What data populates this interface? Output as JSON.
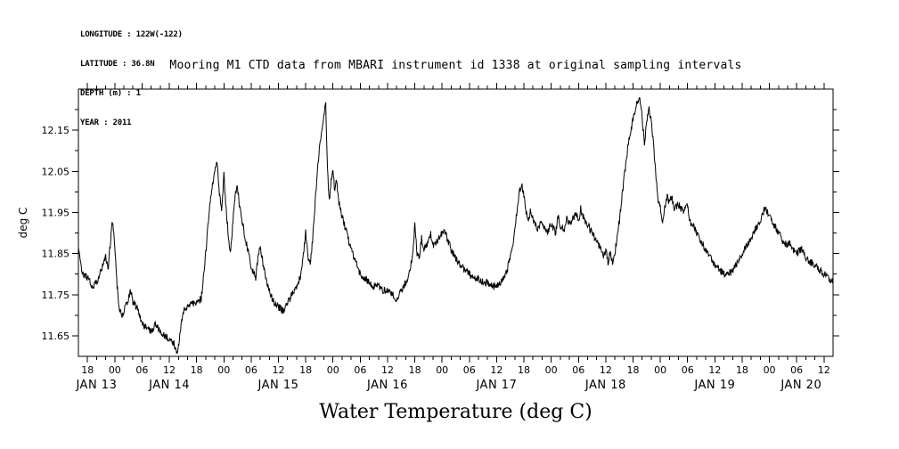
{
  "metadata": {
    "longitude": "LONGITUDE : 122W(-122)",
    "latitude": "LATITUDE : 36.8N",
    "depth": "DEPTH (m) : 1",
    "year": "YEAR : 2011"
  },
  "title": "Mooring M1 CTD data from MBARI instrument id 1338 at original sampling intervals",
  "caption": "Water Temperature (deg C)",
  "chart_data": {
    "type": "line",
    "title": "Mooring M1 CTD data from MBARI instrument id 1338 at original sampling intervals",
    "ylabel": "deg C",
    "xlabel": "Water Temperature (deg C)",
    "line_color": "#000000",
    "background": "#ffffff",
    "grid": false,
    "legend": "none",
    "ylim": [
      11.6,
      12.25
    ],
    "yticks": [
      11.65,
      11.75,
      11.85,
      11.95,
      12.05,
      12.15
    ],
    "xlim_hours": [
      16,
      182
    ],
    "x_axis_epoch": "hours since JAN 13 2011 00:00",
    "x_major_tick_hours": 6,
    "x_minor_tick_hours": 2,
    "x_hour_label_cycle": [
      "18",
      "00",
      "06",
      "12"
    ],
    "day_labels": [
      "JAN 13",
      "JAN 14",
      "JAN 15",
      "JAN 16",
      "JAN 17",
      "JAN 18",
      "JAN 19",
      "JAN 20"
    ],
    "noise_amplitude": 0.009,
    "series": [
      {
        "name": "water temperature",
        "units": "deg C",
        "points": [
          [
            16,
            11.87
          ],
          [
            16.5,
            11.82
          ],
          [
            17,
            11.8
          ],
          [
            18,
            11.79
          ],
          [
            19,
            11.77
          ],
          [
            20,
            11.78
          ],
          [
            21,
            11.81
          ],
          [
            22,
            11.84
          ],
          [
            22.5,
            11.81
          ],
          [
            23,
            11.87
          ],
          [
            23.5,
            11.93
          ],
          [
            24,
            11.87
          ],
          [
            24.5,
            11.77
          ],
          [
            25,
            11.72
          ],
          [
            25.5,
            11.7
          ],
          [
            26,
            11.71
          ],
          [
            27,
            11.74
          ],
          [
            27.5,
            11.76
          ],
          [
            28,
            11.73
          ],
          [
            29,
            11.72
          ],
          [
            30,
            11.68
          ],
          [
            31,
            11.67
          ],
          [
            32,
            11.66
          ],
          [
            33,
            11.68
          ],
          [
            34,
            11.66
          ],
          [
            35,
            11.65
          ],
          [
            36,
            11.64
          ],
          [
            37,
            11.63
          ],
          [
            37.5,
            11.61
          ],
          [
            38,
            11.62
          ],
          [
            38.5,
            11.67
          ],
          [
            39,
            11.71
          ],
          [
            40,
            11.72
          ],
          [
            41,
            11.73
          ],
          [
            42,
            11.73
          ],
          [
            43,
            11.74
          ],
          [
            43.5,
            11.79
          ],
          [
            44,
            11.85
          ],
          [
            44.5,
            11.92
          ],
          [
            45,
            11.98
          ],
          [
            45.5,
            12.02
          ],
          [
            46,
            12.05
          ],
          [
            46.5,
            12.07
          ],
          [
            47,
            12.0
          ],
          [
            47.5,
            11.96
          ],
          [
            48,
            12.04
          ],
          [
            48.5,
            11.96
          ],
          [
            49,
            11.89
          ],
          [
            49.5,
            11.85
          ],
          [
            50,
            11.93
          ],
          [
            50.5,
            12.0
          ],
          [
            51,
            12.01
          ],
          [
            51.5,
            11.96
          ],
          [
            52,
            11.93
          ],
          [
            52.5,
            11.9
          ],
          [
            53,
            11.87
          ],
          [
            54,
            11.82
          ],
          [
            55,
            11.79
          ],
          [
            55.5,
            11.84
          ],
          [
            56,
            11.87
          ],
          [
            56.5,
            11.83
          ],
          [
            57,
            11.8
          ],
          [
            58,
            11.76
          ],
          [
            59,
            11.73
          ],
          [
            60,
            11.72
          ],
          [
            61,
            11.71
          ],
          [
            62,
            11.73
          ],
          [
            63,
            11.75
          ],
          [
            64,
            11.77
          ],
          [
            65,
            11.8
          ],
          [
            65.5,
            11.85
          ],
          [
            66,
            11.9
          ],
          [
            66.5,
            11.84
          ],
          [
            67,
            11.83
          ],
          [
            67.5,
            11.88
          ],
          [
            68,
            11.96
          ],
          [
            68.5,
            12.04
          ],
          [
            69,
            12.1
          ],
          [
            69.5,
            12.15
          ],
          [
            70,
            12.19
          ],
          [
            70.4,
            12.21
          ],
          [
            70.8,
            12.05
          ],
          [
            71.2,
            11.98
          ],
          [
            71.6,
            12.03
          ],
          [
            72,
            12.05
          ],
          [
            72.4,
            12.0
          ],
          [
            72.8,
            12.03
          ],
          [
            73.2,
            11.98
          ],
          [
            74,
            11.94
          ],
          [
            75,
            11.9
          ],
          [
            76,
            11.86
          ],
          [
            77,
            11.83
          ],
          [
            78,
            11.8
          ],
          [
            79,
            11.79
          ],
          [
            80,
            11.78
          ],
          [
            81,
            11.77
          ],
          [
            82,
            11.77
          ],
          [
            83,
            11.76
          ],
          [
            84,
            11.76
          ],
          [
            85,
            11.75
          ],
          [
            86,
            11.74
          ],
          [
            87,
            11.76
          ],
          [
            88,
            11.78
          ],
          [
            89,
            11.81
          ],
          [
            89.5,
            11.85
          ],
          [
            90,
            11.92
          ],
          [
            90.5,
            11.85
          ],
          [
            91,
            11.84
          ],
          [
            91.5,
            11.89
          ],
          [
            92,
            11.86
          ],
          [
            93,
            11.88
          ],
          [
            93.5,
            11.9
          ],
          [
            94,
            11.87
          ],
          [
            95,
            11.88
          ],
          [
            96,
            11.9
          ],
          [
            96.5,
            11.91
          ],
          [
            97,
            11.89
          ],
          [
            98,
            11.86
          ],
          [
            99,
            11.84
          ],
          [
            100,
            11.82
          ],
          [
            101,
            11.81
          ],
          [
            102,
            11.8
          ],
          [
            103,
            11.79
          ],
          [
            104,
            11.79
          ],
          [
            105,
            11.78
          ],
          [
            106,
            11.78
          ],
          [
            107,
            11.77
          ],
          [
            108,
            11.77
          ],
          [
            109,
            11.78
          ],
          [
            110,
            11.8
          ],
          [
            110.5,
            11.82
          ],
          [
            111,
            11.84
          ],
          [
            111.5,
            11.87
          ],
          [
            112,
            11.91
          ],
          [
            112.5,
            11.96
          ],
          [
            113,
            12.0
          ],
          [
            113.5,
            12.02
          ],
          [
            114,
            11.99
          ],
          [
            114.5,
            11.95
          ],
          [
            115,
            11.93
          ],
          [
            115.5,
            11.96
          ],
          [
            116,
            11.93
          ],
          [
            117,
            11.91
          ],
          [
            118,
            11.93
          ],
          [
            119,
            11.9
          ],
          [
            120,
            11.92
          ],
          [
            121,
            11.9
          ],
          [
            121.5,
            11.94
          ],
          [
            122,
            11.92
          ],
          [
            123,
            11.91
          ],
          [
            123.5,
            11.94
          ],
          [
            124,
            11.92
          ],
          [
            125,
            11.94
          ],
          [
            125.5,
            11.95
          ],
          [
            126,
            11.93
          ],
          [
            126.5,
            11.96
          ],
          [
            127,
            11.94
          ],
          [
            128,
            11.92
          ],
          [
            129,
            11.9
          ],
          [
            130,
            11.88
          ],
          [
            131,
            11.86
          ],
          [
            131.5,
            11.84
          ],
          [
            132,
            11.86
          ],
          [
            132.5,
            11.83
          ],
          [
            133,
            11.85
          ],
          [
            133.5,
            11.83
          ],
          [
            134,
            11.85
          ],
          [
            134.5,
            11.89
          ],
          [
            135,
            11.93
          ],
          [
            135.5,
            11.98
          ],
          [
            136,
            12.03
          ],
          [
            136.5,
            12.08
          ],
          [
            137,
            12.12
          ],
          [
            137.5,
            12.15
          ],
          [
            138,
            12.18
          ],
          [
            138.5,
            12.2
          ],
          [
            139,
            12.22
          ],
          [
            139.5,
            12.23
          ],
          [
            140,
            12.18
          ],
          [
            140.5,
            12.12
          ],
          [
            141,
            12.17
          ],
          [
            141.5,
            12.2
          ],
          [
            142,
            12.17
          ],
          [
            142.5,
            12.12
          ],
          [
            143,
            12.04
          ],
          [
            143.5,
            11.98
          ],
          [
            144,
            11.96
          ],
          [
            144.5,
            11.93
          ],
          [
            145,
            11.96
          ],
          [
            145.5,
            11.99
          ],
          [
            146,
            11.97
          ],
          [
            146.5,
            11.99
          ],
          [
            147,
            11.96
          ],
          [
            148,
            11.97
          ],
          [
            149,
            11.95
          ],
          [
            150,
            11.97
          ],
          [
            150.5,
            11.93
          ],
          [
            151,
            11.92
          ],
          [
            152,
            11.9
          ],
          [
            153,
            11.88
          ],
          [
            154,
            11.86
          ],
          [
            155,
            11.84
          ],
          [
            156,
            11.82
          ],
          [
            157,
            11.81
          ],
          [
            158,
            11.8
          ],
          [
            159,
            11.8
          ],
          [
            160,
            11.81
          ],
          [
            161,
            11.83
          ],
          [
            162,
            11.85
          ],
          [
            163,
            11.87
          ],
          [
            164,
            11.89
          ],
          [
            165,
            11.91
          ],
          [
            166,
            11.93
          ],
          [
            166.5,
            11.95
          ],
          [
            167,
            11.96
          ],
          [
            167.5,
            11.95
          ],
          [
            168,
            11.94
          ],
          [
            169,
            11.92
          ],
          [
            170,
            11.9
          ],
          [
            171,
            11.88
          ],
          [
            172,
            11.87
          ],
          [
            172.5,
            11.88
          ],
          [
            173,
            11.86
          ],
          [
            174,
            11.85
          ],
          [
            175,
            11.86
          ],
          [
            176,
            11.84
          ],
          [
            177,
            11.83
          ],
          [
            178,
            11.82
          ],
          [
            179,
            11.81
          ],
          [
            180,
            11.8
          ],
          [
            181,
            11.79
          ],
          [
            182,
            11.78
          ]
        ]
      }
    ]
  }
}
